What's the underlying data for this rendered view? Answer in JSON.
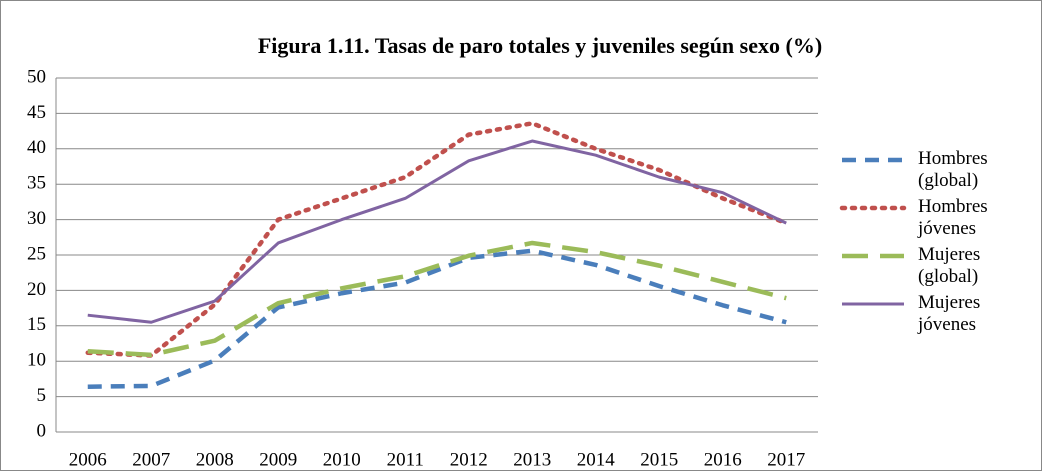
{
  "chart_data": {
    "type": "line",
    "title": "Figura 1.11. Tasas de paro totales y juveniles según sexo (%)",
    "categories": [
      "2006",
      "2007",
      "2008",
      "2009",
      "2010",
      "2011",
      "2012",
      "2013",
      "2014",
      "2015",
      "2016",
      "2017"
    ],
    "ylim": [
      0,
      50
    ],
    "yticks": [
      0,
      5,
      10,
      15,
      20,
      25,
      30,
      35,
      40,
      45,
      50
    ],
    "grid": true,
    "legend": "right",
    "series": [
      {
        "name": "Hombres (global)",
        "color": "#4a7ebb",
        "dash": "dashed",
        "values": [
          6.4,
          6.5,
          10.1,
          17.6,
          19.6,
          21.1,
          24.6,
          25.6,
          23.6,
          20.6,
          17.9,
          15.5
        ]
      },
      {
        "name": "Hombres jóvenes",
        "color": "#c0504d",
        "dash": "dotted",
        "values": [
          11.2,
          10.8,
          18.0,
          30.0,
          33.0,
          36.0,
          42.0,
          43.6,
          40.0,
          37.0,
          33.0,
          29.5
        ]
      },
      {
        "name": "Mujeres (global)",
        "color": "#9bbb59",
        "dash": "longdash",
        "values": [
          11.4,
          10.9,
          12.9,
          18.2,
          20.3,
          22.0,
          24.9,
          26.7,
          25.4,
          23.5,
          21.2,
          18.9
        ]
      },
      {
        "name": "Mujeres jóvenes",
        "color": "#8064a2",
        "dash": "solid",
        "values": [
          16.5,
          15.5,
          18.5,
          26.7,
          30.0,
          33.0,
          38.3,
          41.1,
          39.1,
          36.0,
          33.8,
          29.5
        ]
      }
    ]
  }
}
